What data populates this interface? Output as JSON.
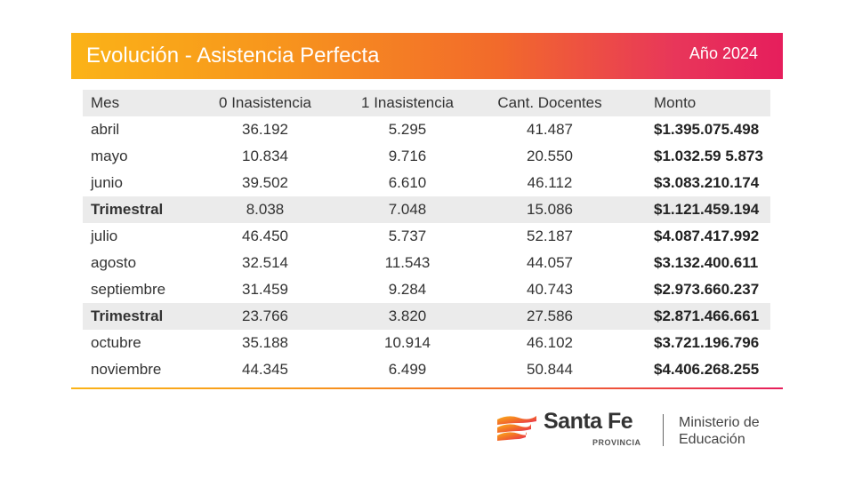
{
  "header": {
    "title": "Evolución - Asistencia Perfecta",
    "year": "Año 2024"
  },
  "table": {
    "columns": [
      "Mes",
      "0 Inasistencia",
      "1 Inasistencia",
      "Cant. Docentes",
      "Monto"
    ],
    "rows": [
      {
        "mes": "abril",
        "cero": "36.192",
        "uno": "5.295",
        "docentes": "41.487",
        "monto": "$1.395.075.498",
        "trimestral": false
      },
      {
        "mes": "mayo",
        "cero": "10.834",
        "uno": "9.716",
        "docentes": "20.550",
        "monto": "$1.032.59 5.873",
        "trimestral": false
      },
      {
        "mes": "junio",
        "cero": "39.502",
        "uno": "6.610",
        "docentes": "46.112",
        "monto": "$3.083.210.174",
        "trimestral": false
      },
      {
        "mes": "Trimestral",
        "cero": "8.038",
        "uno": "7.048",
        "docentes": "15.086",
        "monto": "$1.121.459.194",
        "trimestral": true
      },
      {
        "mes": "julio",
        "cero": "46.450",
        "uno": "5.737",
        "docentes": "52.187",
        "monto": "$4.087.417.992",
        "trimestral": false
      },
      {
        "mes": "agosto",
        "cero": "32.514",
        "uno": "11.543",
        "docentes": "44.057",
        "monto": "$3.132.400.611",
        "trimestral": false
      },
      {
        "mes": "septiembre",
        "cero": "31.459",
        "uno": "9.284",
        "docentes": "40.743",
        "monto": "$2.973.660.237",
        "trimestral": false
      },
      {
        "mes": "Trimestral",
        "cero": "23.766",
        "uno": "3.820",
        "docentes": "27.586",
        "monto": "$2.871.466.661",
        "trimestral": true
      },
      {
        "mes": "octubre",
        "cero": "35.188",
        "uno": "10.914",
        "docentes": "46.102",
        "monto": "$3.721.196.796",
        "trimestral": false
      },
      {
        "mes": "noviembre",
        "cero": "44.345",
        "uno": "6.499",
        "docentes": "50.844",
        "monto": "$4.406.268.255",
        "trimestral": false
      }
    ]
  },
  "footer": {
    "brand": "Santa Fe",
    "brand_sub": "PROVINCIA",
    "ministry_line1": "Ministerio de",
    "ministry_line2": "Educación",
    "logo_icon": "santa-fe-logo-icon"
  },
  "colors": {
    "accent_start": "#fbb317",
    "accent_end": "#e61e5c",
    "row_highlight": "#ebebeb"
  }
}
